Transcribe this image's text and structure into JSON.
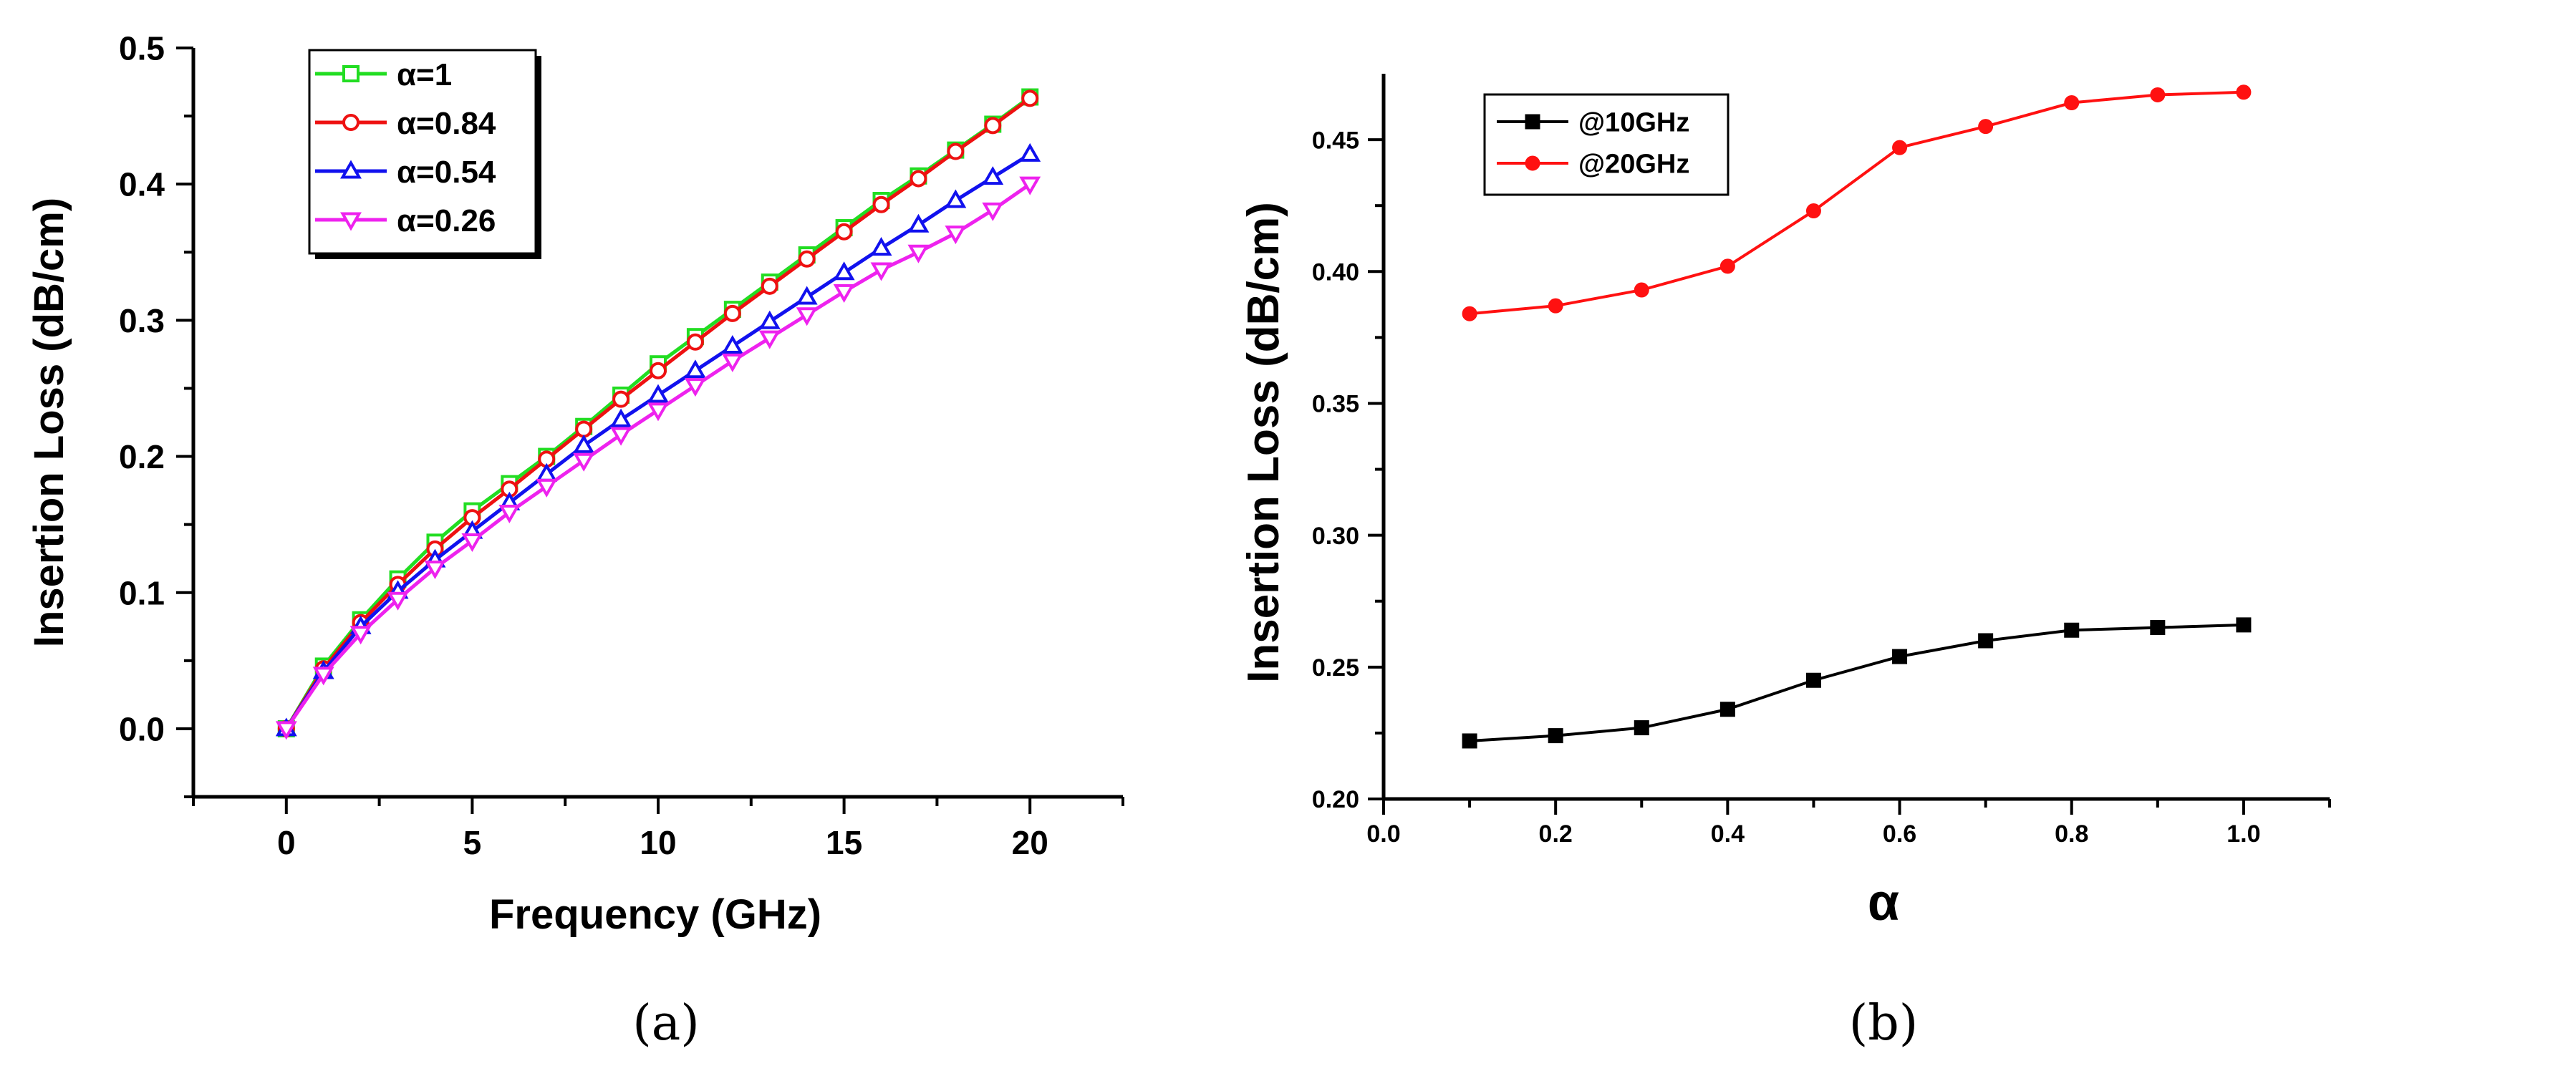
{
  "chart_data": [
    {
      "type": "line",
      "panel": "a",
      "caption": "(a)",
      "xlabel": "Frequency (GHz)",
      "ylabel": "Insertion Loss (dB/cm)",
      "xlim": [
        -2.5,
        22.5
      ],
      "ylim": [
        -0.05,
        0.5
      ],
      "xticks": [
        0,
        5,
        10,
        15,
        20
      ],
      "xtick_labels": [
        "0",
        "5",
        "10",
        "15",
        "20"
      ],
      "yticks": [
        0.0,
        0.1,
        0.2,
        0.3,
        0.4,
        0.5
      ],
      "ytick_labels": [
        "0.0",
        "0.1",
        "0.2",
        "0.3",
        "0.4",
        "0.5"
      ],
      "legend_position": "top-left",
      "x": [
        0,
        1,
        2,
        3,
        4,
        5,
        6,
        7,
        8,
        9,
        10,
        11,
        12,
        13,
        14,
        15,
        16,
        17,
        18,
        19,
        20
      ],
      "series": [
        {
          "name": "α=1",
          "color": "#22dd22",
          "marker": "square",
          "values": [
            0.0,
            0.046,
            0.08,
            0.11,
            0.137,
            0.16,
            0.18,
            0.2,
            0.222,
            0.245,
            0.268,
            0.288,
            0.308,
            0.328,
            0.348,
            0.368,
            0.388,
            0.406,
            0.425,
            0.444,
            0.464
          ]
        },
        {
          "name": "α=0.84",
          "color": "#ee1111",
          "marker": "circle",
          "values": [
            0.0,
            0.044,
            0.078,
            0.106,
            0.132,
            0.155,
            0.176,
            0.198,
            0.22,
            0.242,
            0.263,
            0.284,
            0.305,
            0.325,
            0.345,
            0.365,
            0.385,
            0.404,
            0.424,
            0.443,
            0.463
          ]
        },
        {
          "name": "α=0.54",
          "color": "#1111ee",
          "marker": "triangle-up",
          "values": [
            0.0,
            0.042,
            0.075,
            0.101,
            0.124,
            0.145,
            0.166,
            0.187,
            0.208,
            0.227,
            0.245,
            0.263,
            0.281,
            0.299,
            0.317,
            0.335,
            0.353,
            0.37,
            0.388,
            0.405,
            0.422
          ]
        },
        {
          "name": "α=0.26",
          "color": "#ee22ee",
          "marker": "triangle-down",
          "values": [
            0.0,
            0.04,
            0.07,
            0.095,
            0.118,
            0.138,
            0.159,
            0.178,
            0.197,
            0.216,
            0.234,
            0.252,
            0.27,
            0.287,
            0.304,
            0.321,
            0.337,
            0.35,
            0.364,
            0.381,
            0.4
          ]
        }
      ]
    },
    {
      "type": "line",
      "panel": "b",
      "caption": "(b)",
      "xlabel": "α",
      "ylabel": "Insertion Loss (dB/cm)",
      "xlim": [
        0.0,
        1.1
      ],
      "ylim": [
        0.2,
        0.475
      ],
      "xticks": [
        0.0,
        0.2,
        0.4,
        0.6,
        0.8,
        1.0
      ],
      "xtick_labels": [
        "0.0",
        "0.2",
        "0.4",
        "0.6",
        "0.8",
        "1.0"
      ],
      "yticks": [
        0.2,
        0.25,
        0.3,
        0.35,
        0.4,
        0.45
      ],
      "ytick_labels": [
        "0.20",
        "0.25",
        "0.30",
        "0.35",
        "0.40",
        "0.45"
      ],
      "legend_position": "top-left",
      "x": [
        0.1,
        0.2,
        0.3,
        0.4,
        0.5,
        0.6,
        0.7,
        0.8,
        0.9,
        1.0
      ],
      "series": [
        {
          "name": "@10GHz",
          "color": "#000000",
          "marker": "square",
          "values": [
            0.222,
            0.224,
            0.227,
            0.234,
            0.245,
            0.254,
            0.26,
            0.264,
            0.265,
            0.266
          ]
        },
        {
          "name": "@20GHz",
          "color": "#ff1111",
          "marker": "circle",
          "values": [
            0.384,
            0.387,
            0.393,
            0.402,
            0.423,
            0.447,
            0.455,
            0.464,
            0.467,
            0.468
          ]
        }
      ]
    }
  ]
}
